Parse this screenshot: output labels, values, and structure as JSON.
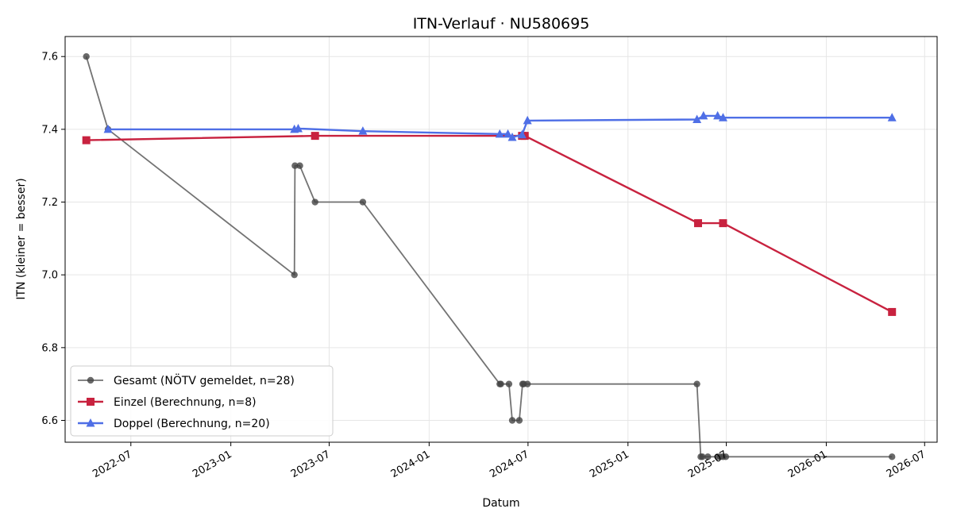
{
  "chart_data": {
    "type": "line",
    "title": "ITN-Verlauf · NU580695",
    "xlabel": "Datum",
    "ylabel": "ITN  (kleiner = besser)",
    "x_type": "date",
    "xlim": [
      "2022-03-02",
      "2026-07-24"
    ],
    "ylim": [
      6.54,
      7.655
    ],
    "x_ticks": [
      "2022-07",
      "2023-01",
      "2023-07",
      "2024-01",
      "2024-07",
      "2025-01",
      "2025-07",
      "2026-01",
      "2026-07"
    ],
    "y_ticks": [
      6.6,
      6.8,
      7.0,
      7.2,
      7.4,
      7.6
    ],
    "grid": true,
    "legend_position": "lower-left",
    "series": [
      {
        "name": "Gesamt (NÖTV gemeldet, n=28)",
        "color": "#444444",
        "marker": "circle",
        "x": [
          "2022-04-10",
          "2022-05-20",
          "2023-04-28",
          "2023-04-29",
          "2023-05-08",
          "2023-06-05",
          "2023-09-01",
          "2024-05-10",
          "2024-05-12",
          "2024-05-27",
          "2024-06-02",
          "2024-06-15",
          "2024-06-21",
          "2024-06-23",
          "2024-06-30",
          "2025-05-08",
          "2025-05-15",
          "2025-05-18",
          "2025-05-28",
          "2025-06-15",
          "2025-06-20",
          "2025-06-25",
          "2025-06-30",
          "2026-05-02"
        ],
        "values": [
          7.6,
          7.4,
          7.0,
          7.3,
          7.3,
          7.2,
          7.2,
          6.7,
          6.7,
          6.7,
          6.6,
          6.6,
          6.7,
          6.7,
          6.7,
          6.7,
          6.5,
          6.5,
          6.5,
          6.5,
          6.5,
          6.5,
          6.5,
          6.5
        ]
      },
      {
        "name": "Einzel (Berechnung, n=8)",
        "color": "#c8223f",
        "marker": "square",
        "x": [
          "2022-04-10",
          "2023-06-05",
          "2024-06-20",
          "2024-06-25",
          "2025-05-10",
          "2025-06-25",
          "2026-05-02"
        ],
        "values": [
          7.37,
          7.382,
          7.382,
          7.382,
          7.142,
          7.142,
          6.898
        ]
      },
      {
        "name": "Doppel (Berechnung, n=20)",
        "color": "#4f6fe6",
        "marker": "triangle",
        "x": [
          "2022-05-20",
          "2023-04-28",
          "2023-05-05",
          "2023-09-01",
          "2024-05-10",
          "2024-05-25",
          "2024-06-02",
          "2024-06-20",
          "2024-06-30",
          "2025-05-08",
          "2025-05-20",
          "2025-06-15",
          "2025-06-25",
          "2026-05-02"
        ],
        "values": [
          7.4,
          7.4,
          7.402,
          7.395,
          7.387,
          7.387,
          7.378,
          7.385,
          7.424,
          7.427,
          7.437,
          7.437,
          7.432,
          7.432
        ]
      }
    ]
  }
}
